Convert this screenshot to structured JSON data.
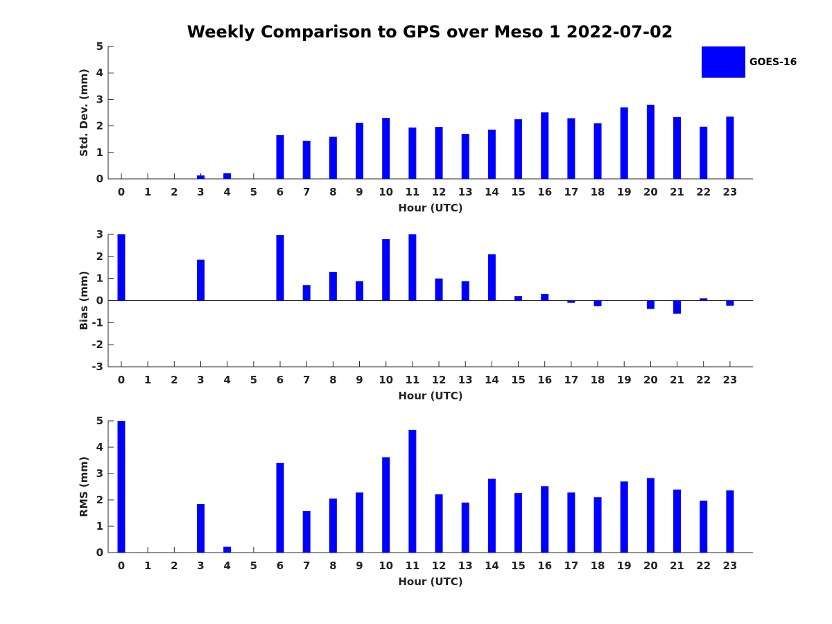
{
  "title": "Weekly Comparison to GPS over Meso 1 2022-07-02",
  "legend": {
    "label": "GOES-16",
    "color": "#0000ff",
    "placement": "top-right"
  },
  "chart_data": [
    {
      "type": "bar",
      "categories": [
        "0",
        "1",
        "2",
        "3",
        "4",
        "5",
        "6",
        "7",
        "8",
        "9",
        "10",
        "11",
        "12",
        "13",
        "14",
        "15",
        "16",
        "17",
        "18",
        "19",
        "20",
        "21",
        "22",
        "23"
      ],
      "series": [
        {
          "name": "GOES-16",
          "values": [
            0,
            0,
            0,
            0.13,
            0.21,
            0,
            1.65,
            1.44,
            1.59,
            2.12,
            2.3,
            1.94,
            1.96,
            1.7,
            1.86,
            2.25,
            2.51,
            2.29,
            2.1,
            2.7,
            2.8,
            2.33,
            1.97,
            2.35
          ]
        }
      ],
      "xlabel": "Hour (UTC)",
      "ylabel": "Std. Dev. (mm)",
      "ylim": [
        0,
        5
      ],
      "yticks": [
        "0",
        "1",
        "2",
        "3",
        "4",
        "5"
      ]
    },
    {
      "type": "bar",
      "categories": [
        "0",
        "1",
        "2",
        "3",
        "4",
        "5",
        "6",
        "7",
        "8",
        "9",
        "10",
        "11",
        "12",
        "13",
        "14",
        "15",
        "16",
        "17",
        "18",
        "19",
        "20",
        "21",
        "22",
        "23"
      ],
      "series": [
        {
          "name": "GOES-16",
          "values": [
            3.0,
            0,
            0,
            1.85,
            0,
            0,
            2.97,
            0.7,
            1.3,
            0.88,
            2.78,
            3.0,
            1.0,
            0.88,
            2.1,
            0.2,
            0.3,
            -0.1,
            -0.25,
            0,
            -0.38,
            -0.6,
            0.1,
            -0.23
          ]
        }
      ],
      "xlabel": "Hour (UTC)",
      "ylabel": "Bias (mm)",
      "ylim": [
        -3,
        3
      ],
      "yticks": [
        "-3",
        "-2",
        "-1",
        "0",
        "1",
        "2",
        "3"
      ]
    },
    {
      "type": "bar",
      "categories": [
        "0",
        "1",
        "2",
        "3",
        "4",
        "5",
        "6",
        "7",
        "8",
        "9",
        "10",
        "11",
        "12",
        "13",
        "14",
        "15",
        "16",
        "17",
        "18",
        "19",
        "20",
        "21",
        "22",
        "23"
      ],
      "series": [
        {
          "name": "GOES-16",
          "values": [
            5.0,
            0,
            0,
            1.84,
            0.22,
            0,
            3.4,
            1.58,
            2.05,
            2.28,
            3.62,
            4.66,
            2.21,
            1.9,
            2.8,
            2.26,
            2.52,
            2.28,
            2.1,
            2.7,
            2.83,
            2.39,
            1.97,
            2.36
          ]
        }
      ],
      "xlabel": "Hour (UTC)",
      "ylabel": "RMS (mm)",
      "ylim": [
        0,
        5
      ],
      "yticks": [
        "0",
        "1",
        "2",
        "3",
        "4",
        "5"
      ]
    }
  ]
}
